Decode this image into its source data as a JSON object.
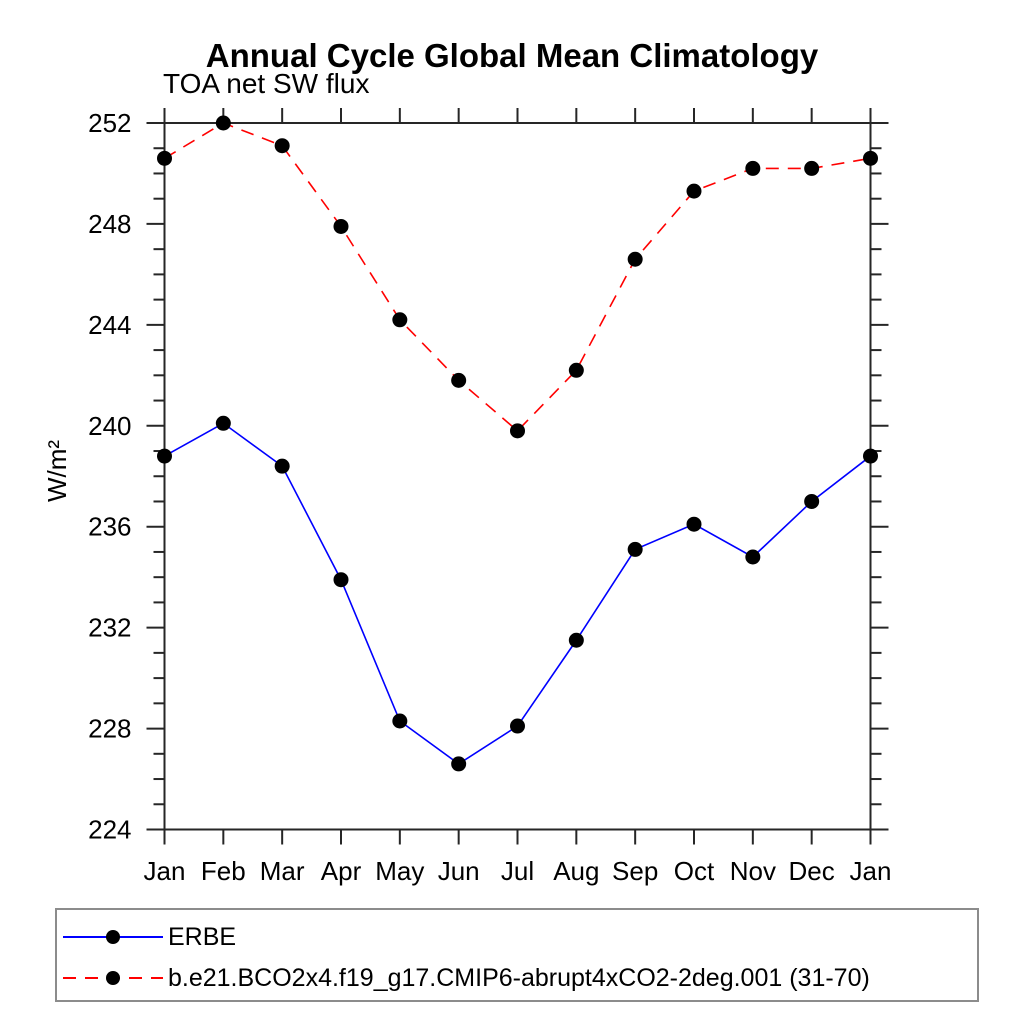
{
  "page": {
    "background": "#ffffff"
  },
  "chart_data": {
    "type": "line",
    "title": "Annual Cycle Global Mean Climatology",
    "subtitle": "TOA net SW flux",
    "ylabel": "W/m²",
    "xlabel": "",
    "categories": [
      "Jan",
      "Feb",
      "Mar",
      "Apr",
      "May",
      "Jun",
      "Jul",
      "Aug",
      "Sep",
      "Oct",
      "Nov",
      "Dec",
      "Jan"
    ],
    "ylim": [
      224,
      252
    ],
    "y_major_tick_step": 4,
    "y_minor_tick_step": 1,
    "y_tick_labels": [
      "224",
      "228",
      "232",
      "236",
      "240",
      "244",
      "248",
      "252"
    ],
    "grid": false,
    "legend_position": "bottom-box",
    "axis_color": "#262626",
    "marker": {
      "shape": "circle",
      "color": "#000000",
      "radius": 7.5
    },
    "series": [
      {
        "name": "ERBE",
        "color": "#0000ff",
        "line_style": "solid",
        "values": [
          238.8,
          240.1,
          238.4,
          233.9,
          228.3,
          226.6,
          228.1,
          231.5,
          235.1,
          236.1,
          234.8,
          237.0,
          238.8
        ]
      },
      {
        "name": "b.e21.BCO2x4.f19_g17.CMIP6-abrupt4xCO2-2deg.001 (31-70)",
        "color": "#ff0000",
        "line_style": "dashed",
        "values": [
          250.6,
          252.0,
          251.1,
          247.9,
          244.2,
          241.8,
          239.8,
          242.2,
          246.6,
          249.3,
          250.2,
          250.2,
          250.6
        ]
      }
    ]
  }
}
